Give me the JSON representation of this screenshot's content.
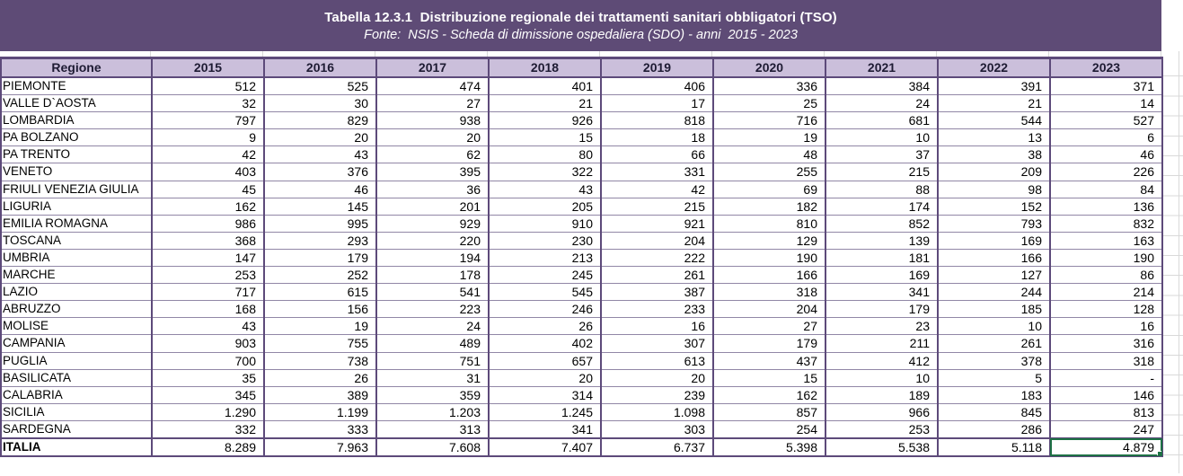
{
  "banner": {
    "title": "Tabella 12.3.1  Distribuzione regionale dei trattamenti sanitari obbligatori (TSO)",
    "subtitle": "Fonte:  NSIS - Scheda di dimissione ospedaliera (SDO) - anni  2015 - 2023",
    "background_color": "#5e4b76",
    "text_color": "#ffffff"
  },
  "colors": {
    "header_row_bg": "#cbbfdb",
    "table_border": "#5d4a7a",
    "row_gridline": "#9187a6",
    "sheet_gridline": "#d9d9d9",
    "selection_border": "#1e7145"
  },
  "table": {
    "columns": [
      "Regione",
      "2015",
      "2016",
      "2017",
      "2018",
      "2019",
      "2020",
      "2021",
      "2022",
      "2023"
    ],
    "rows": [
      {
        "region": "PIEMONTE",
        "values": [
          "512",
          "525",
          "474",
          "401",
          "406",
          "336",
          "384",
          "391",
          "371"
        ]
      },
      {
        "region": "VALLE D`AOSTA",
        "values": [
          "32",
          "30",
          "27",
          "21",
          "17",
          "25",
          "24",
          "21",
          "14"
        ]
      },
      {
        "region": "LOMBARDIA",
        "values": [
          "797",
          "829",
          "938",
          "926",
          "818",
          "716",
          "681",
          "544",
          "527"
        ]
      },
      {
        "region": "PA BOLZANO",
        "values": [
          "9",
          "20",
          "20",
          "15",
          "18",
          "19",
          "10",
          "13",
          "6"
        ]
      },
      {
        "region": "PA TRENTO",
        "values": [
          "42",
          "43",
          "62",
          "80",
          "66",
          "48",
          "37",
          "38",
          "46"
        ]
      },
      {
        "region": "VENETO",
        "values": [
          "403",
          "376",
          "395",
          "322",
          "331",
          "255",
          "215",
          "209",
          "226"
        ]
      },
      {
        "region": "FRIULI VENEZIA GIULIA",
        "values": [
          "45",
          "46",
          "36",
          "43",
          "42",
          "69",
          "88",
          "98",
          "84"
        ]
      },
      {
        "region": "LIGURIA",
        "values": [
          "162",
          "145",
          "201",
          "205",
          "215",
          "182",
          "174",
          "152",
          "136"
        ]
      },
      {
        "region": "EMILIA ROMAGNA",
        "values": [
          "986",
          "995",
          "929",
          "910",
          "921",
          "810",
          "852",
          "793",
          "832"
        ]
      },
      {
        "region": "TOSCANA",
        "values": [
          "368",
          "293",
          "220",
          "230",
          "204",
          "129",
          "139",
          "169",
          "163"
        ]
      },
      {
        "region": "UMBRIA",
        "values": [
          "147",
          "179",
          "194",
          "213",
          "222",
          "190",
          "181",
          "166",
          "190"
        ]
      },
      {
        "region": "MARCHE",
        "values": [
          "253",
          "252",
          "178",
          "245",
          "261",
          "166",
          "169",
          "127",
          "86"
        ]
      },
      {
        "region": "LAZIO",
        "values": [
          "717",
          "615",
          "541",
          "545",
          "387",
          "318",
          "341",
          "244",
          "214"
        ]
      },
      {
        "region": "ABRUZZO",
        "values": [
          "168",
          "156",
          "223",
          "246",
          "233",
          "204",
          "179",
          "185",
          "128"
        ]
      },
      {
        "region": "MOLISE",
        "values": [
          "43",
          "19",
          "24",
          "26",
          "16",
          "27",
          "23",
          "10",
          "16"
        ]
      },
      {
        "region": "CAMPANIA",
        "values": [
          "903",
          "755",
          "489",
          "402",
          "307",
          "179",
          "211",
          "261",
          "316"
        ]
      },
      {
        "region": "PUGLIA",
        "values": [
          "700",
          "738",
          "751",
          "657",
          "613",
          "437",
          "412",
          "378",
          "318"
        ]
      },
      {
        "region": "BASILICATA",
        "values": [
          "35",
          "26",
          "31",
          "20",
          "20",
          "15",
          "10",
          "5",
          "-"
        ]
      },
      {
        "region": "CALABRIA",
        "values": [
          "345",
          "389",
          "359",
          "314",
          "239",
          "162",
          "189",
          "183",
          "146"
        ]
      },
      {
        "region": "SICILIA",
        "values": [
          "1.290",
          "1.199",
          "1.203",
          "1.245",
          "1.098",
          "857",
          "966",
          "845",
          "813"
        ]
      },
      {
        "region": "SARDEGNA",
        "values": [
          "332",
          "333",
          "313",
          "341",
          "303",
          "254",
          "253",
          "286",
          "247"
        ]
      },
      {
        "region": "ITALIA",
        "is_total": true,
        "values": [
          "8.289",
          "7.963",
          "7.608",
          "7.407",
          "6.737",
          "5.398",
          "5.538",
          "5.118",
          "4.879"
        ]
      }
    ],
    "selected_cell": {
      "row_index": 21,
      "value_index": 8,
      "region": "ITALIA",
      "column": "2023",
      "value": "4.879"
    }
  },
  "chart_data": {
    "type": "table",
    "title": "Tabella 12.3.1  Distribuzione regionale dei trattamenti sanitari obbligatori (TSO)",
    "subtitle": "Fonte:  NSIS - Scheda di dimissione ospedaliera (SDO) - anni  2015 - 2023",
    "columns": [
      "Regione",
      "2015",
      "2016",
      "2017",
      "2018",
      "2019",
      "2020",
      "2021",
      "2022",
      "2023"
    ],
    "rows": [
      [
        "PIEMONTE",
        512,
        525,
        474,
        401,
        406,
        336,
        384,
        391,
        371
      ],
      [
        "VALLE D`AOSTA",
        32,
        30,
        27,
        21,
        17,
        25,
        24,
        21,
        14
      ],
      [
        "LOMBARDIA",
        797,
        829,
        938,
        926,
        818,
        716,
        681,
        544,
        527
      ],
      [
        "PA BOLZANO",
        9,
        20,
        20,
        15,
        18,
        19,
        10,
        13,
        6
      ],
      [
        "PA TRENTO",
        42,
        43,
        62,
        80,
        66,
        48,
        37,
        38,
        46
      ],
      [
        "VENETO",
        403,
        376,
        395,
        322,
        331,
        255,
        215,
        209,
        226
      ],
      [
        "FRIULI VENEZIA GIULIA",
        45,
        46,
        36,
        43,
        42,
        69,
        88,
        98,
        84
      ],
      [
        "LIGURIA",
        162,
        145,
        201,
        205,
        215,
        182,
        174,
        152,
        136
      ],
      [
        "EMILIA ROMAGNA",
        986,
        995,
        929,
        910,
        921,
        810,
        852,
        793,
        832
      ],
      [
        "TOSCANA",
        368,
        293,
        220,
        230,
        204,
        129,
        139,
        169,
        163
      ],
      [
        "UMBRIA",
        147,
        179,
        194,
        213,
        222,
        190,
        181,
        166,
        190
      ],
      [
        "MARCHE",
        253,
        252,
        178,
        245,
        261,
        166,
        169,
        127,
        86
      ],
      [
        "LAZIO",
        717,
        615,
        541,
        545,
        387,
        318,
        341,
        244,
        214
      ],
      [
        "ABRUZZO",
        168,
        156,
        223,
        246,
        233,
        204,
        179,
        185,
        128
      ],
      [
        "MOLISE",
        43,
        19,
        24,
        26,
        16,
        27,
        23,
        10,
        16
      ],
      [
        "CAMPANIA",
        903,
        755,
        489,
        402,
        307,
        179,
        211,
        261,
        316
      ],
      [
        "PUGLIA",
        700,
        738,
        751,
        657,
        613,
        437,
        412,
        378,
        318
      ],
      [
        "BASILICATA",
        35,
        26,
        31,
        20,
        20,
        15,
        10,
        5,
        null
      ],
      [
        "CALABRIA",
        345,
        389,
        359,
        314,
        239,
        162,
        189,
        183,
        146
      ],
      [
        "SICILIA",
        1290,
        1199,
        1203,
        1245,
        1098,
        857,
        966,
        845,
        813
      ],
      [
        "SARDEGNA",
        332,
        333,
        313,
        341,
        303,
        254,
        253,
        286,
        247
      ],
      [
        "ITALIA",
        8289,
        7963,
        7608,
        7407,
        6737,
        5398,
        5538,
        5118,
        4879
      ]
    ]
  }
}
